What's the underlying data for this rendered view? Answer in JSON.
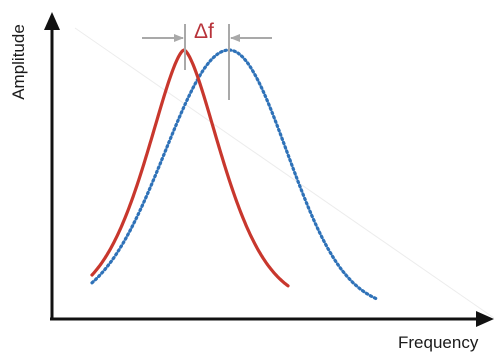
{
  "diagram": {
    "y_axis_label": "Amplitude",
    "x_axis_label": "Frequency",
    "shift_label": "Δf"
  },
  "curves": [
    {
      "id": "reference",
      "style": "solid",
      "color": "#c8372d"
    },
    {
      "id": "shifted",
      "style": "dotted",
      "color": "#2f72b8"
    }
  ],
  "colors": {
    "axis": "#111111",
    "marker": "#a9a9a9",
    "shift_label": "#b8333a"
  }
}
